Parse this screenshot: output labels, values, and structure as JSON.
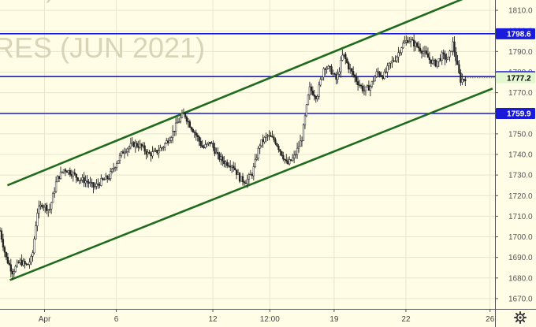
{
  "watermark": {
    "line1": ")",
    "line2": "RES (JUN 2021)"
  },
  "colors": {
    "background": "#fffde6",
    "horizontal_line": "#1a1adb",
    "channel_line": "#1f6b1f",
    "candle": "#222222",
    "grid": "#e8e5cc",
    "badge_blue": "#1a1adb",
    "badge_last": "#e2f7d0"
  },
  "settings_icon": "gear-icon",
  "chart_data": {
    "type": "candlestick",
    "instrument_watermark": "RES (JUN 2021)",
    "ylim": [
      1665,
      1815
    ],
    "y_ticks": [
      1670,
      1680,
      1690,
      1700,
      1710,
      1720,
      1730,
      1740,
      1750,
      1760,
      1770,
      1780,
      1790,
      1800,
      1810
    ],
    "y_tick_labels": [
      "1670.0",
      "1680.0",
      "1690.0",
      "1700.0",
      "1710.0",
      "1720.0",
      "1730.0",
      "1740.0",
      "1750.0",
      "1760.0",
      "1770.0",
      "1780.0",
      "1790.0",
      "1800.0",
      "1810.0"
    ],
    "x_tick_labels": [
      {
        "label": "Apr",
        "t": 0.09
      },
      {
        "label": "6",
        "t": 0.235
      },
      {
        "label": "12",
        "t": 0.43
      },
      {
        "label": "12:00",
        "t": 0.545
      },
      {
        "label": "19",
        "t": 0.675
      },
      {
        "label": "22",
        "t": 0.82
      },
      {
        "label": "26",
        "t": 0.99
      }
    ],
    "horizontal_levels": [
      {
        "value": 1798.6,
        "label": "1798.6"
      },
      {
        "value": 1777.8,
        "label": "1777.8"
      },
      {
        "value": 1759.9,
        "label": "1759.9"
      }
    ],
    "last_price": {
      "value": 1777.2,
      "label": "1777.2"
    },
    "channel_lines": [
      {
        "name": "upper",
        "start": [
          0.015,
          1725
        ],
        "end": [
          0.94,
          1816
        ]
      },
      {
        "name": "lower",
        "start": [
          0.02,
          1679
        ],
        "end": [
          0.995,
          1772
        ]
      }
    ],
    "price_path": [
      [
        0.0,
        1703
      ],
      [
        0.012,
        1690
      ],
      [
        0.025,
        1683
      ],
      [
        0.04,
        1688
      ],
      [
        0.055,
        1686
      ],
      [
        0.065,
        1690
      ],
      [
        0.075,
        1712
      ],
      [
        0.085,
        1716
      ],
      [
        0.1,
        1713
      ],
      [
        0.115,
        1728
      ],
      [
        0.13,
        1733
      ],
      [
        0.145,
        1731
      ],
      [
        0.16,
        1728
      ],
      [
        0.175,
        1727
      ],
      [
        0.19,
        1724
      ],
      [
        0.205,
        1727
      ],
      [
        0.22,
        1729
      ],
      [
        0.235,
        1736
      ],
      [
        0.25,
        1742
      ],
      [
        0.27,
        1745
      ],
      [
        0.285,
        1744
      ],
      [
        0.3,
        1740
      ],
      [
        0.315,
        1741
      ],
      [
        0.33,
        1744
      ],
      [
        0.345,
        1749
      ],
      [
        0.36,
        1756
      ],
      [
        0.372,
        1760
      ],
      [
        0.382,
        1755
      ],
      [
        0.395,
        1750
      ],
      [
        0.41,
        1743
      ],
      [
        0.425,
        1746
      ],
      [
        0.44,
        1739
      ],
      [
        0.455,
        1736
      ],
      [
        0.47,
        1735
      ],
      [
        0.485,
        1728
      ],
      [
        0.497,
        1727
      ],
      [
        0.51,
        1731
      ],
      [
        0.525,
        1745
      ],
      [
        0.54,
        1749
      ],
      [
        0.555,
        1747
      ],
      [
        0.57,
        1740
      ],
      [
        0.58,
        1735
      ],
      [
        0.595,
        1739
      ],
      [
        0.61,
        1748
      ],
      [
        0.625,
        1772
      ],
      [
        0.64,
        1768
      ],
      [
        0.655,
        1783
      ],
      [
        0.668,
        1781
      ],
      [
        0.68,
        1776
      ],
      [
        0.693,
        1789
      ],
      [
        0.705,
        1782
      ],
      [
        0.72,
        1776
      ],
      [
        0.735,
        1771
      ],
      [
        0.748,
        1773
      ],
      [
        0.762,
        1780
      ],
      [
        0.775,
        1778
      ],
      [
        0.788,
        1784
      ],
      [
        0.8,
        1787
      ],
      [
        0.812,
        1793
      ],
      [
        0.825,
        1796
      ],
      [
        0.84,
        1793
      ],
      [
        0.855,
        1790
      ],
      [
        0.868,
        1786
      ],
      [
        0.88,
        1784
      ],
      [
        0.893,
        1788
      ],
      [
        0.905,
        1786
      ],
      [
        0.915,
        1794
      ],
      [
        0.922,
        1785
      ],
      [
        0.93,
        1776
      ],
      [
        0.94,
        1777.2
      ]
    ]
  }
}
